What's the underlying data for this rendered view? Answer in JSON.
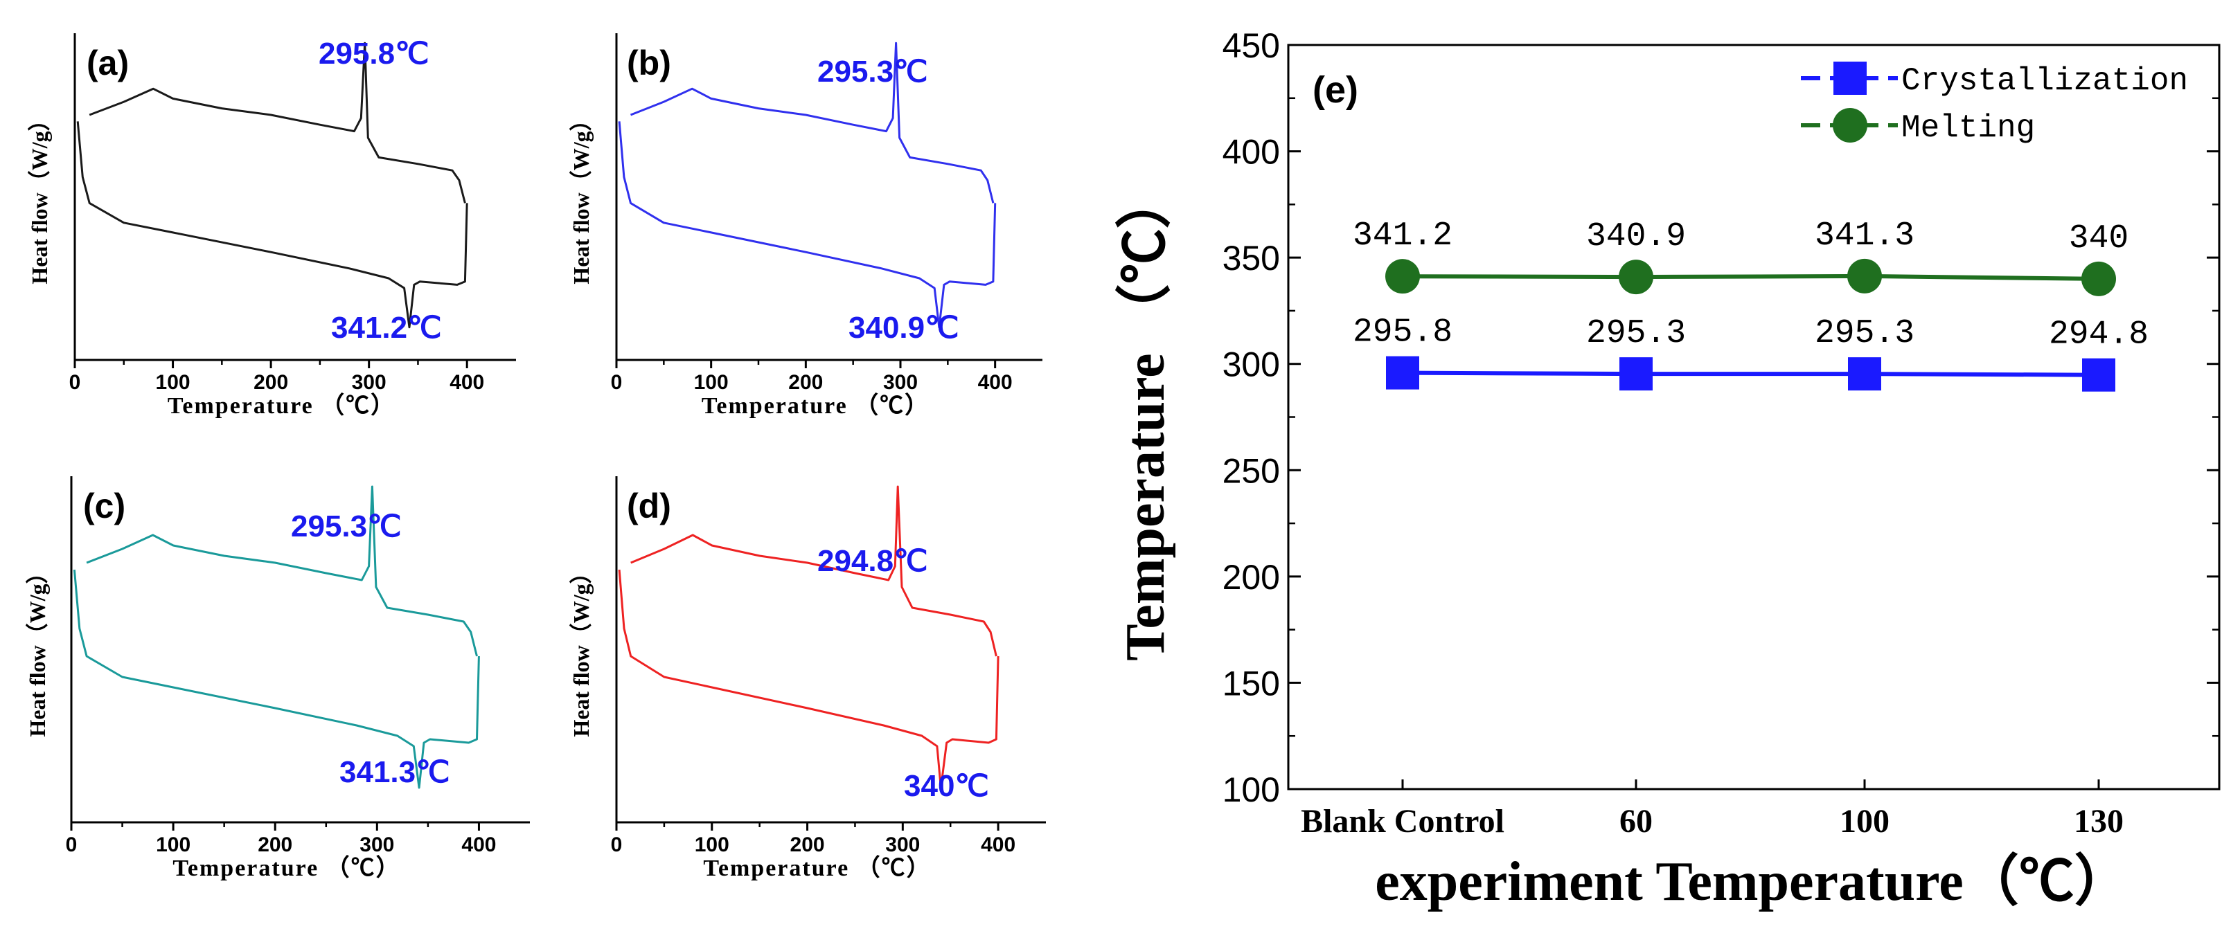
{
  "chart_data": [
    {
      "type": "line",
      "panel_label": "(a)",
      "color": "#1a1a1a",
      "xlabel": "Temperature （℃）",
      "ylabel": "Heat flow（W/g）",
      "xticks": [
        "0",
        "100",
        "200",
        "300",
        "400"
      ],
      "xlim": [
        0,
        450
      ],
      "crystallization_peak": {
        "temp": 295.8,
        "label": "295.8℃"
      },
      "melting_peak": {
        "temp": 341.2,
        "label": "341.2℃"
      },
      "cooling_curve": [
        [
          15,
          0.75
        ],
        [
          50,
          0.79
        ],
        [
          80,
          0.83
        ],
        [
          100,
          0.8
        ],
        [
          150,
          0.77
        ],
        [
          200,
          0.75
        ],
        [
          250,
          0.72
        ],
        [
          285,
          0.7
        ],
        [
          292,
          0.74
        ],
        [
          295.8,
          0.97
        ],
        [
          299,
          0.68
        ],
        [
          310,
          0.62
        ],
        [
          350,
          0.6
        ],
        [
          385,
          0.58
        ],
        [
          392,
          0.55
        ],
        [
          398,
          0.48
        ]
      ],
      "heating_curve": [
        [
          3,
          0.73
        ],
        [
          8,
          0.56
        ],
        [
          15,
          0.48
        ],
        [
          50,
          0.42
        ],
        [
          100,
          0.39
        ],
        [
          200,
          0.33
        ],
        [
          280,
          0.28
        ],
        [
          320,
          0.25
        ],
        [
          336,
          0.22
        ],
        [
          341.2,
          0.1
        ],
        [
          346,
          0.23
        ],
        [
          352,
          0.24
        ],
        [
          390,
          0.23
        ],
        [
          398,
          0.24
        ],
        [
          400,
          0.48
        ]
      ]
    },
    {
      "type": "line",
      "panel_label": "(b)",
      "color": "#3030ee",
      "xlabel": "Temperature （℃）",
      "ylabel": "Heat flow（W/g）",
      "xticks": [
        "0",
        "100",
        "200",
        "300",
        "400"
      ],
      "xlim": [
        0,
        450
      ],
      "crystallization_peak": {
        "temp": 295.3,
        "label": "295.3℃"
      },
      "melting_peak": {
        "temp": 340.9,
        "label": "340.9℃"
      },
      "cooling_curve": [
        [
          15,
          0.75
        ],
        [
          50,
          0.79
        ],
        [
          80,
          0.83
        ],
        [
          100,
          0.8
        ],
        [
          150,
          0.77
        ],
        [
          200,
          0.75
        ],
        [
          250,
          0.72
        ],
        [
          285,
          0.7
        ],
        [
          292,
          0.74
        ],
        [
          295.3,
          0.97
        ],
        [
          299,
          0.68
        ],
        [
          310,
          0.62
        ],
        [
          350,
          0.6
        ],
        [
          385,
          0.58
        ],
        [
          392,
          0.55
        ],
        [
          398,
          0.48
        ]
      ],
      "heating_curve": [
        [
          3,
          0.73
        ],
        [
          8,
          0.56
        ],
        [
          15,
          0.48
        ],
        [
          50,
          0.42
        ],
        [
          100,
          0.39
        ],
        [
          200,
          0.33
        ],
        [
          280,
          0.28
        ],
        [
          320,
          0.25
        ],
        [
          336,
          0.22
        ],
        [
          340.9,
          0.1
        ],
        [
          346,
          0.23
        ],
        [
          352,
          0.24
        ],
        [
          390,
          0.23
        ],
        [
          398,
          0.24
        ],
        [
          400,
          0.48
        ]
      ]
    },
    {
      "type": "line",
      "panel_label": "(c)",
      "color": "#1a9a9a",
      "xlabel": "Temperature （℃）",
      "ylabel": "Heat flow（W/g）",
      "xticks": [
        "0",
        "100",
        "200",
        "300",
        "400"
      ],
      "xlim": [
        0,
        450
      ],
      "crystallization_peak": {
        "temp": 295.3,
        "label": "295.3℃"
      },
      "melting_peak": {
        "temp": 341.3,
        "label": "341.3℃"
      },
      "cooling_curve": [
        [
          15,
          0.75
        ],
        [
          50,
          0.79
        ],
        [
          80,
          0.83
        ],
        [
          100,
          0.8
        ],
        [
          150,
          0.77
        ],
        [
          200,
          0.75
        ],
        [
          250,
          0.72
        ],
        [
          285,
          0.7
        ],
        [
          292,
          0.74
        ],
        [
          295.3,
          0.97
        ],
        [
          299,
          0.68
        ],
        [
          310,
          0.62
        ],
        [
          350,
          0.6
        ],
        [
          385,
          0.58
        ],
        [
          392,
          0.55
        ],
        [
          398,
          0.48
        ]
      ],
      "heating_curve": [
        [
          3,
          0.73
        ],
        [
          8,
          0.56
        ],
        [
          15,
          0.48
        ],
        [
          50,
          0.42
        ],
        [
          100,
          0.39
        ],
        [
          200,
          0.33
        ],
        [
          280,
          0.28
        ],
        [
          320,
          0.25
        ],
        [
          336,
          0.22
        ],
        [
          341.3,
          0.1
        ],
        [
          346,
          0.23
        ],
        [
          352,
          0.24
        ],
        [
          390,
          0.23
        ],
        [
          398,
          0.24
        ],
        [
          400,
          0.48
        ]
      ]
    },
    {
      "type": "line",
      "panel_label": "(d)",
      "color": "#ee2222",
      "xlabel": "Temperature （℃）",
      "ylabel": "Heat flow（W/g）",
      "xticks": [
        "0",
        "100",
        "200",
        "300",
        "400"
      ],
      "xlim": [
        0,
        450
      ],
      "crystallization_peak": {
        "temp": 294.8,
        "label": "294.8℃"
      },
      "melting_peak": {
        "temp": 340,
        "label": "340℃"
      },
      "cooling_curve": [
        [
          15,
          0.75
        ],
        [
          50,
          0.79
        ],
        [
          80,
          0.83
        ],
        [
          100,
          0.8
        ],
        [
          150,
          0.77
        ],
        [
          200,
          0.75
        ],
        [
          250,
          0.72
        ],
        [
          285,
          0.7
        ],
        [
          292,
          0.74
        ],
        [
          294.8,
          0.97
        ],
        [
          299,
          0.68
        ],
        [
          310,
          0.62
        ],
        [
          350,
          0.6
        ],
        [
          385,
          0.58
        ],
        [
          392,
          0.55
        ],
        [
          398,
          0.48
        ]
      ],
      "heating_curve": [
        [
          3,
          0.73
        ],
        [
          8,
          0.56
        ],
        [
          15,
          0.48
        ],
        [
          50,
          0.42
        ],
        [
          100,
          0.39
        ],
        [
          200,
          0.33
        ],
        [
          280,
          0.28
        ],
        [
          320,
          0.25
        ],
        [
          336,
          0.22
        ],
        [
          340,
          0.1
        ],
        [
          346,
          0.23
        ],
        [
          352,
          0.24
        ],
        [
          390,
          0.23
        ],
        [
          398,
          0.24
        ],
        [
          400,
          0.48
        ]
      ]
    },
    {
      "type": "line",
      "panel_label": "(e)",
      "categories": [
        "Blank Control",
        "60",
        "100",
        "130"
      ],
      "xlabel": "experiment Temperature（℃）",
      "ylabel": "Temperature （℃）",
      "yticks": [
        "100",
        "150",
        "200",
        "250",
        "300",
        "350",
        "400",
        "450"
      ],
      "ylim": [
        100,
        450
      ],
      "series": [
        {
          "name": "Crystallization",
          "color": "#1a1aff",
          "marker": "square",
          "values": [
            295.8,
            295.3,
            295.3,
            294.8
          ],
          "labels": [
            "295.8",
            "295.3",
            "295.3",
            "294.8"
          ]
        },
        {
          "name": "Melting",
          "color": "#1f6f1f",
          "marker": "circle",
          "values": [
            341.2,
            340.9,
            341.3,
            340
          ],
          "labels": [
            "341.2",
            "340.9",
            "341.3",
            "340"
          ]
        }
      ]
    }
  ]
}
